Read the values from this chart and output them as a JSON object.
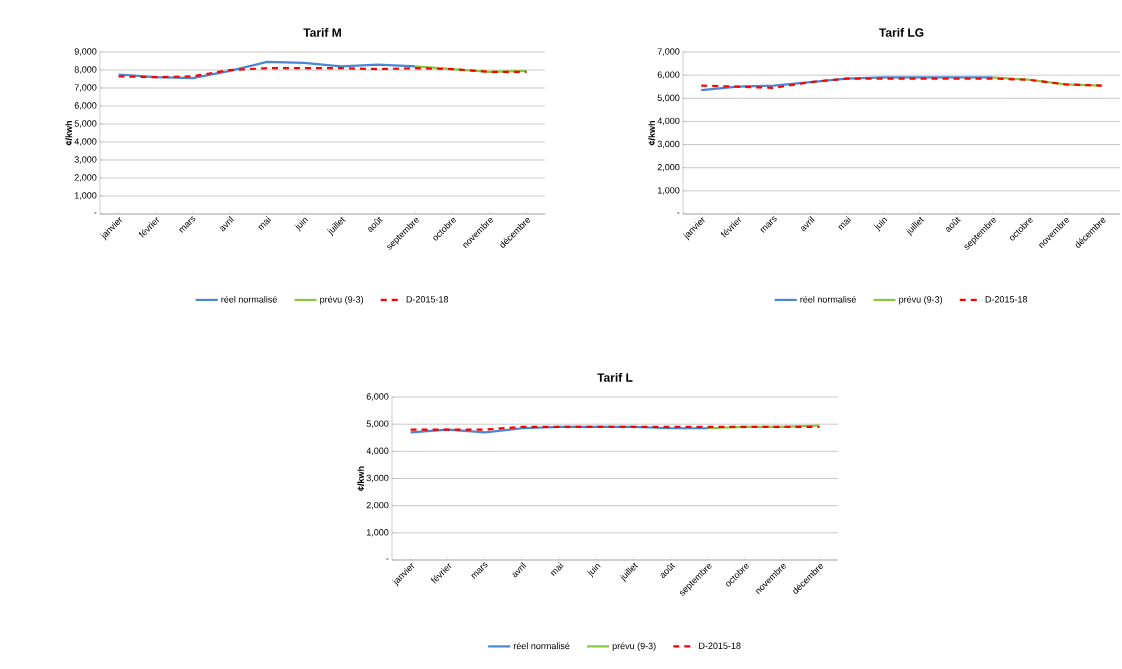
{
  "chart_data": [
    {
      "type": "line",
      "title": "Tarif M",
      "ylabel": "¢/kwh",
      "categories": [
        "janvier",
        "février",
        "mars",
        "avril",
        "mai",
        "juin",
        "juillet",
        "août",
        "septembre",
        "octobre",
        "novembre",
        "décembre"
      ],
      "series": [
        {
          "name": "réel normalisé",
          "color": "#4a86d4",
          "line_style": "solid",
          "values": [
            7750,
            7600,
            7550,
            7950,
            8450,
            8400,
            8200,
            8300,
            8200,
            null,
            null,
            null
          ]
        },
        {
          "name": "prévu (9-3)",
          "color": "#8cc63f",
          "line_style": "solid",
          "values": [
            null,
            null,
            null,
            null,
            null,
            null,
            null,
            null,
            8200,
            8050,
            7900,
            7950
          ]
        },
        {
          "name": "D-2015-18",
          "color": "#ff0000",
          "line_style": "dashed",
          "values": [
            7650,
            7600,
            7650,
            8000,
            8100,
            8100,
            8100,
            8050,
            8100,
            8050,
            7900,
            7900
          ]
        }
      ],
      "ylim": [
        0,
        9000
      ],
      "yticks": [
        {
          "value": 0,
          "label": "-"
        },
        {
          "value": 1000,
          "label": "1,000"
        },
        {
          "value": 2000,
          "label": "2,000"
        },
        {
          "value": 3000,
          "label": "3,000"
        },
        {
          "value": 4000,
          "label": "4,000"
        },
        {
          "value": 5000,
          "label": "5,000"
        },
        {
          "value": 6000,
          "label": "6,000"
        },
        {
          "value": 7000,
          "label": "7,000"
        },
        {
          "value": 8000,
          "label": "8,000"
        },
        {
          "value": 9000,
          "label": "9,000"
        }
      ],
      "grid": "y",
      "legend": "bottom"
    },
    {
      "type": "line",
      "title": "Tarif LG",
      "ylabel": "¢/kwh",
      "categories": [
        "janvier",
        "février",
        "mars",
        "avril",
        "mai",
        "juin",
        "juillet",
        "août",
        "septembre",
        "octobre",
        "novembre",
        "décembre"
      ],
      "series": [
        {
          "name": "réel normalisé",
          "color": "#4a86d4",
          "line_style": "solid",
          "values": [
            5350,
            5500,
            5550,
            5700,
            5850,
            5900,
            5900,
            5900,
            5900,
            null,
            null,
            null
          ]
        },
        {
          "name": "prévu (9-3)",
          "color": "#8cc63f",
          "line_style": "solid",
          "values": [
            null,
            null,
            null,
            null,
            null,
            null,
            null,
            null,
            5900,
            5800,
            5600,
            5550
          ]
        },
        {
          "name": "D-2015-18",
          "color": "#ff0000",
          "line_style": "dashed",
          "values": [
            5550,
            5500,
            5450,
            5700,
            5850,
            5850,
            5850,
            5850,
            5850,
            5800,
            5600,
            5550
          ]
        }
      ],
      "ylim": [
        0,
        7000
      ],
      "yticks": [
        {
          "value": 0,
          "label": "-"
        },
        {
          "value": 1000,
          "label": "1,000"
        },
        {
          "value": 2000,
          "label": "2,000"
        },
        {
          "value": 3000,
          "label": "3,000"
        },
        {
          "value": 4000,
          "label": "4,000"
        },
        {
          "value": 5000,
          "label": "5,000"
        },
        {
          "value": 6000,
          "label": "6,000"
        },
        {
          "value": 7000,
          "label": "7,000"
        }
      ],
      "grid": "y",
      "legend": "bottom"
    },
    {
      "type": "line",
      "title": "Tarif L",
      "ylabel": "¢/kwh",
      "categories": [
        "janvier",
        "février",
        "mars",
        "avril",
        "mai",
        "juin",
        "juillet",
        "août",
        "septembre",
        "octobre",
        "novembre",
        "décembre"
      ],
      "series": [
        {
          "name": "réel normalisé",
          "color": "#4a86d4",
          "line_style": "solid",
          "values": [
            4700,
            4800,
            4700,
            4850,
            4900,
            4900,
            4900,
            4850,
            4850,
            null,
            null,
            null
          ]
        },
        {
          "name": "prévu (9-3)",
          "color": "#8cc63f",
          "line_style": "solid",
          "values": [
            null,
            null,
            null,
            null,
            null,
            null,
            null,
            null,
            4850,
            4900,
            4900,
            4950
          ]
        },
        {
          "name": "D-2015-18",
          "color": "#ff0000",
          "line_style": "dashed",
          "values": [
            4800,
            4800,
            4800,
            4900,
            4900,
            4900,
            4900,
            4900,
            4900,
            4900,
            4900,
            4900
          ]
        }
      ],
      "ylim": [
        0,
        6000
      ],
      "yticks": [
        {
          "value": 0,
          "label": "-"
        },
        {
          "value": 1000,
          "label": "1,000"
        },
        {
          "value": 2000,
          "label": "2,000"
        },
        {
          "value": 3000,
          "label": "3,000"
        },
        {
          "value": 4000,
          "label": "4,000"
        },
        {
          "value": 5000,
          "label": "5,000"
        },
        {
          "value": 6000,
          "label": "6,000"
        }
      ],
      "grid": "y",
      "legend": "bottom"
    }
  ]
}
